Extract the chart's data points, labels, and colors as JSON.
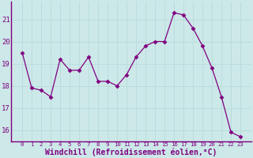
{
  "x": [
    0,
    1,
    2,
    3,
    4,
    5,
    6,
    7,
    8,
    9,
    10,
    11,
    12,
    13,
    14,
    15,
    16,
    17,
    18,
    19,
    20,
    21,
    22,
    23
  ],
  "y": [
    19.5,
    17.9,
    17.8,
    17.5,
    19.2,
    18.7,
    18.7,
    19.3,
    18.2,
    18.2,
    18.0,
    18.5,
    19.3,
    19.8,
    20.0,
    20.0,
    21.3,
    21.2,
    20.6,
    19.8,
    18.8,
    17.5,
    15.9,
    15.7
  ],
  "line_color": "#800080",
  "marker": "D",
  "marker_size": 2.5,
  "bg_color": "#cce8e8",
  "grid_color": "#b0d8d8",
  "xlabel": "Windchill (Refroidissement éolien,°C)",
  "ylim": [
    15.5,
    21.8
  ],
  "yticks": [
    16,
    17,
    18,
    19,
    20,
    21
  ],
  "xticks": [
    0,
    1,
    2,
    3,
    4,
    5,
    6,
    7,
    8,
    9,
    10,
    11,
    12,
    13,
    14,
    15,
    16,
    17,
    18,
    19,
    20,
    21,
    22,
    23
  ],
  "xlabel_fontsize": 7.0,
  "tick_fontsize": 6.5,
  "label_color": "#800080",
  "axis_color": "#808080",
  "spine_color": "#800080"
}
